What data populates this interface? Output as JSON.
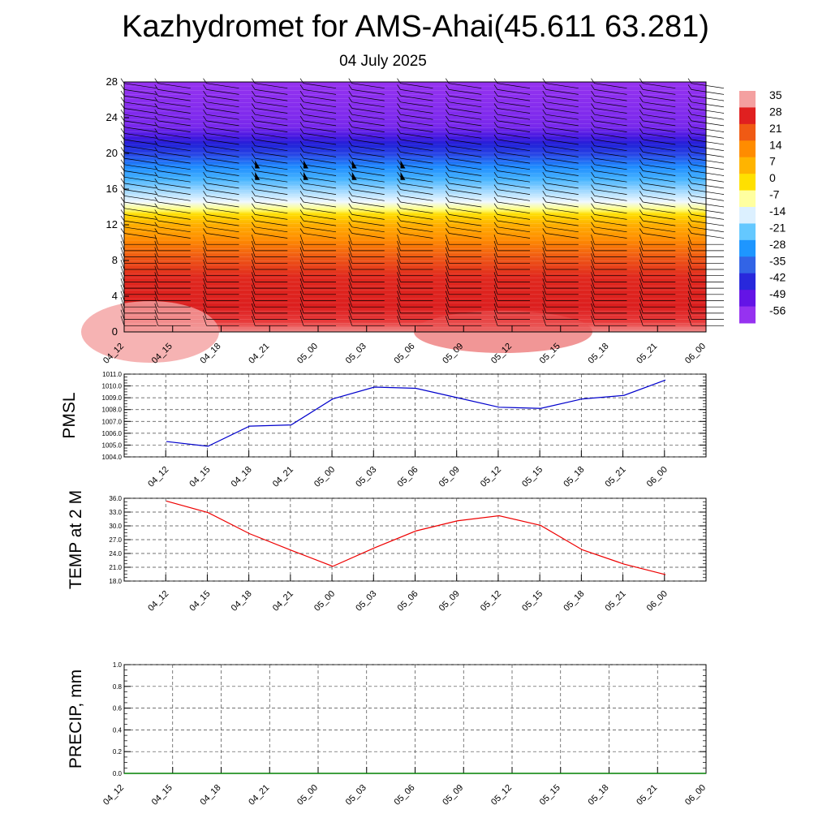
{
  "title": "Kazhydromet for AMS-Ahai(45.611 63.281)",
  "subtitle": "04 July 2025",
  "chart_data": [
    {
      "type": "heatmap",
      "name": "temperature-wind-cross-section",
      "x_ticks": [
        "04_12",
        "04_15",
        "04_18",
        "04_21",
        "05_00",
        "05_03",
        "05_06",
        "05_09",
        "05_12",
        "05_15",
        "05_18",
        "05_21",
        "06_00"
      ],
      "y_ticks": [
        "0",
        "4",
        "8",
        "12",
        "16",
        "20",
        "24",
        "28"
      ],
      "ylim": [
        0,
        28
      ],
      "colorbar": {
        "labels": [
          "35",
          "28",
          "21",
          "14",
          "7",
          "0",
          "-7",
          "-14",
          "-21",
          "-28",
          "-35",
          "-42",
          "-49",
          "-56"
        ],
        "colors": [
          "#f4a0a0",
          "#e02020",
          "#f05a14",
          "#ff8c00",
          "#ffb400",
          "#ffe000",
          "#ffffa0",
          "#dcf0ff",
          "#64c8ff",
          "#1e96ff",
          "#3264e6",
          "#2828dc",
          "#6414e6",
          "#9632f0"
        ]
      },
      "description_bands": [
        {
          "y0": 0,
          "y1": 2,
          "value": 33
        },
        {
          "y0": 2,
          "y1": 6,
          "value": 25
        },
        {
          "y0": 6,
          "y1": 10,
          "value": 16
        },
        {
          "y0": 10,
          "y1": 14,
          "value": 2
        },
        {
          "y0": 14,
          "y1": 18,
          "value": -20
        },
        {
          "y0": 18,
          "y1": 22,
          "value": -45
        },
        {
          "y0": 22,
          "y1": 28,
          "value": -58
        }
      ],
      "wind_barbs": true
    },
    {
      "type": "line",
      "ylabel": "PMSL",
      "x": [
        "04_12",
        "04_15",
        "04_18",
        "04_21",
        "05_00",
        "05_03",
        "05_06",
        "05_09",
        "05_12",
        "05_15",
        "05_18",
        "05_21",
        "06_00"
      ],
      "values": [
        1005.3,
        1004.9,
        1006.6,
        1006.7,
        1008.9,
        1009.9,
        1009.8,
        1009.0,
        1008.2,
        1008.1,
        1008.9,
        1009.2,
        1010.5
      ],
      "ylim": [
        1004.0,
        1011.0
      ],
      "y_ticks": [
        "1004.0",
        "1005.0",
        "1006.0",
        "1007.0",
        "1008.0",
        "1009.0",
        "1010.0",
        "1011.0"
      ],
      "color": "#0000cc",
      "grid": true
    },
    {
      "type": "line",
      "ylabel": "TEMP at 2 M",
      "x": [
        "04_12",
        "04_15",
        "04_18",
        "04_21",
        "05_00",
        "05_03",
        "05_06",
        "05_09",
        "05_12",
        "05_15",
        "05_18",
        "05_21",
        "06_00"
      ],
      "values": [
        35.4,
        32.9,
        28.3,
        24.7,
        21.2,
        25.2,
        28.9,
        31.1,
        32.2,
        30.1,
        24.8,
        21.7,
        19.4
      ],
      "ylim": [
        18.0,
        36.0
      ],
      "y_ticks": [
        "18.0",
        "21.0",
        "24.0",
        "27.0",
        "30.0",
        "33.0",
        "36.0"
      ],
      "color": "#ee0000",
      "grid": true
    },
    {
      "type": "line",
      "ylabel": "PRECIP, mm",
      "x_ticks": [
        "04_12",
        "04_15",
        "04_18",
        "04_21",
        "05_00",
        "05_03",
        "05_06",
        "05_09",
        "05_12",
        "05_15",
        "05_18",
        "05_21",
        "06_00"
      ],
      "values": [
        0,
        0,
        0,
        0,
        0,
        0,
        0,
        0,
        0,
        0,
        0,
        0,
        0
      ],
      "ylim": [
        0.0,
        1.0
      ],
      "y_ticks": [
        "0.0",
        "0.2",
        "0.4",
        "0.6",
        "0.8",
        "1.0"
      ],
      "color": "#008000",
      "grid": true
    }
  ]
}
